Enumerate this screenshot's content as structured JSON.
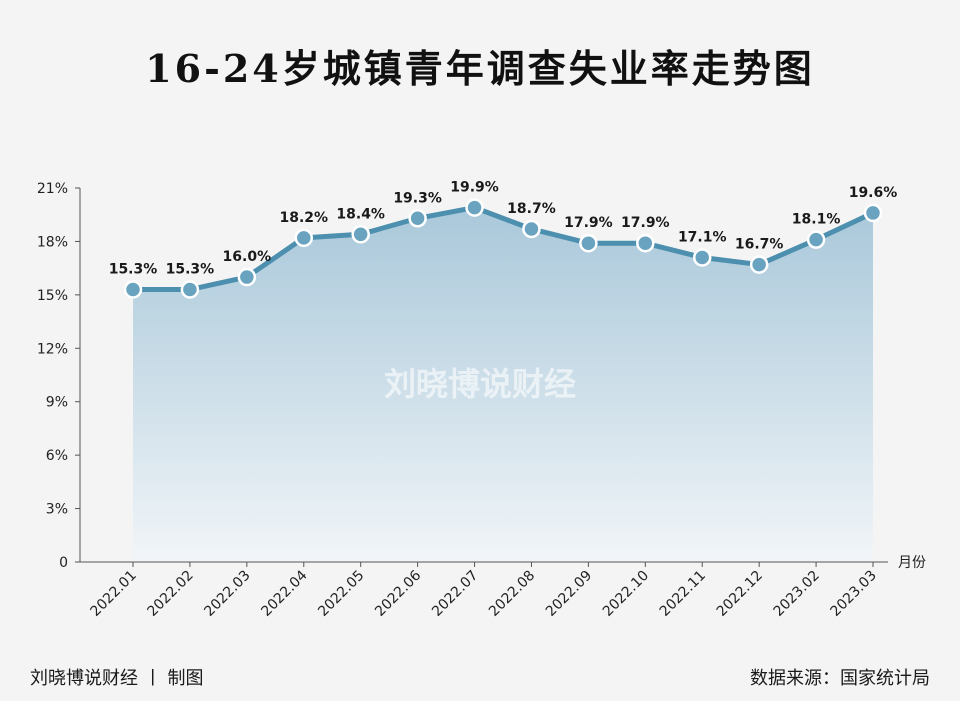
{
  "title": "16-24岁城镇青年调查失业率走势图",
  "watermark": "刘晓博说财经",
  "footer": {
    "left": "刘晓博说财经 丨 制图",
    "right": "数据来源：国家统计局"
  },
  "colors": {
    "line": "#4d8fae",
    "marker_fill": "#6aa3bf",
    "area_top": "#a9c8da",
    "area_bottom": "#f1f5f8",
    "axis": "#555555"
  },
  "chart_data": {
    "type": "area",
    "xlabel": "月份",
    "ylabel": "",
    "ylim": [
      0,
      21
    ],
    "yticks": [
      "0",
      "3%",
      "6%",
      "9%",
      "12%",
      "15%",
      "18%",
      "21%"
    ],
    "ytick_values": [
      0,
      3,
      6,
      9,
      12,
      15,
      18,
      21
    ],
    "categories": [
      "2022.01",
      "2022.02",
      "2022.03",
      "2022.04",
      "2022.05",
      "2022.06",
      "2022.07",
      "2022.08",
      "2022.09",
      "2022.10",
      "2022.11",
      "2022.12",
      "2023.02",
      "2023.03"
    ],
    "values": [
      15.3,
      15.3,
      16.0,
      18.2,
      18.4,
      19.3,
      19.9,
      18.7,
      17.9,
      17.9,
      17.1,
      16.7,
      18.1,
      19.6
    ],
    "labels": [
      "15.3%",
      "15.3%",
      "16.0%",
      "18.2%",
      "18.4%",
      "19.3%",
      "19.9%",
      "18.7%",
      "17.9%",
      "17.9%",
      "17.1%",
      "16.7%",
      "18.1%",
      "19.6%"
    ],
    "grid": false,
    "legend": "none"
  }
}
